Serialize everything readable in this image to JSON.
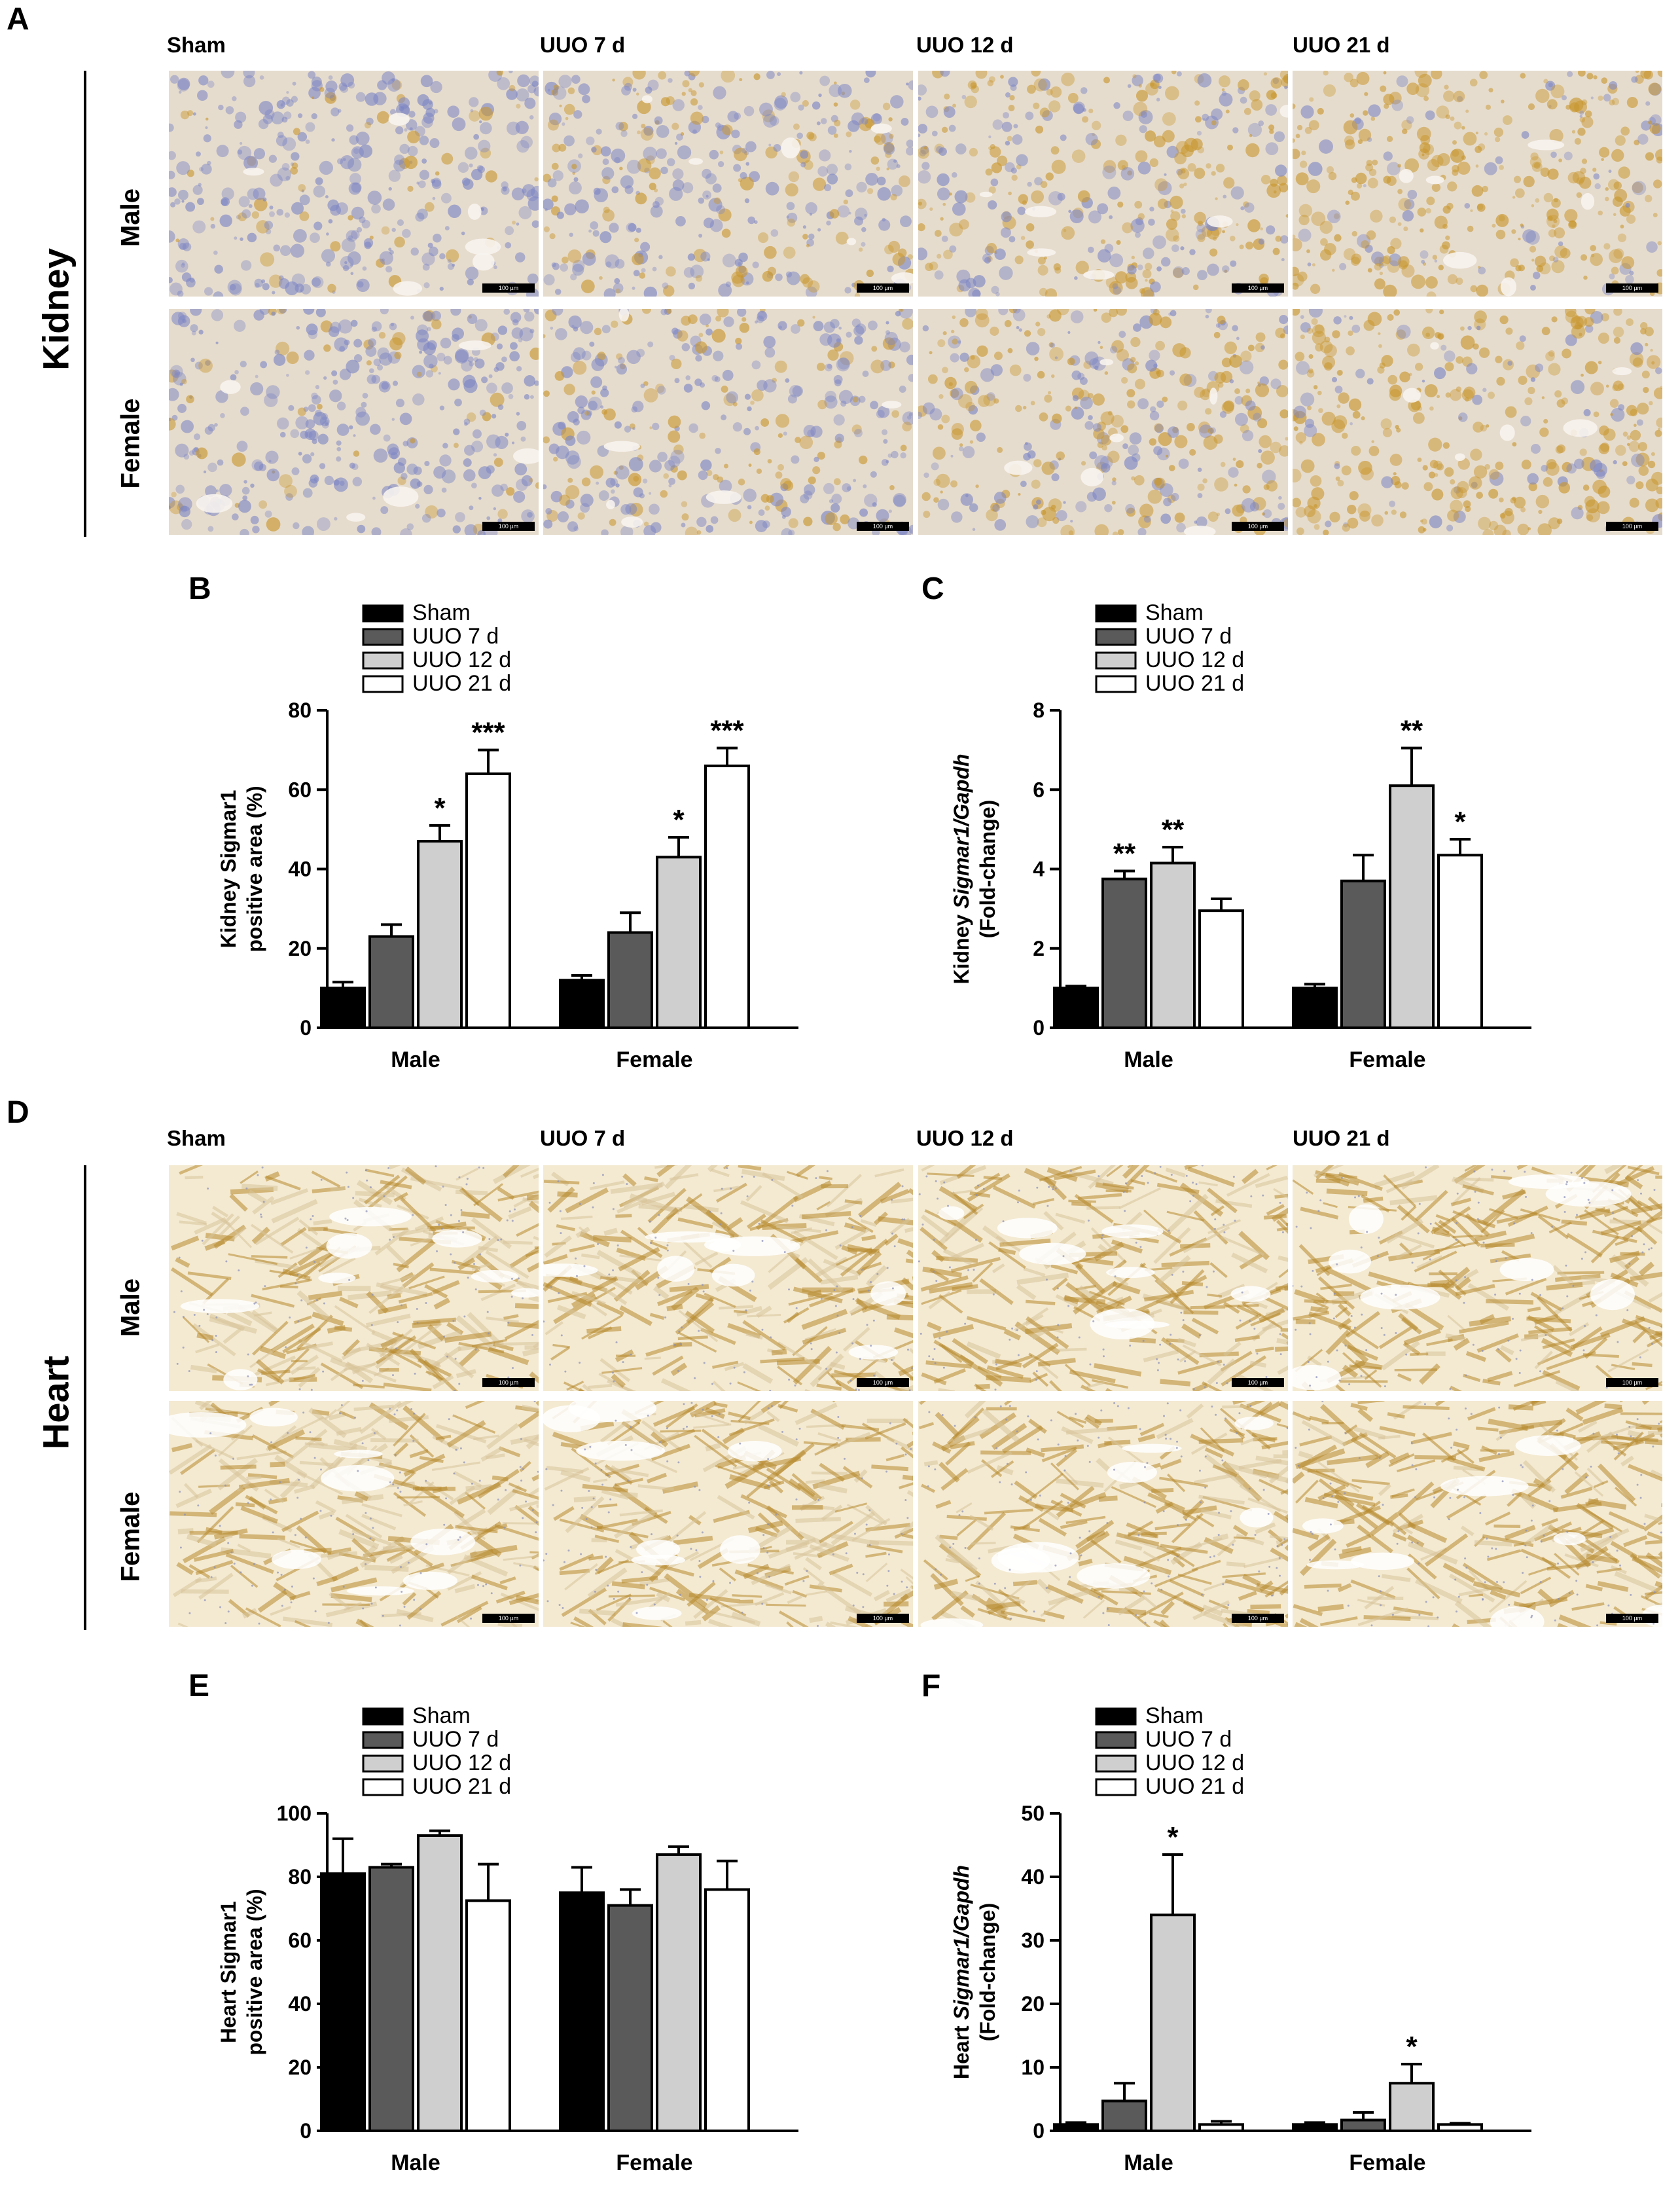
{
  "panel_letters": {
    "a": "A",
    "b": "B",
    "c": "C",
    "d": "D",
    "e": "E",
    "f": "F"
  },
  "kidney_section": {
    "side_label": "Kidney",
    "columns": [
      "Sham",
      "UUO 7 d",
      "UUO 12 d",
      "UUO 21 d"
    ],
    "rows": [
      "Male",
      "Female"
    ],
    "scale_bar": "100 µm",
    "stain_colors": {
      "tissue_base": "#e6dccd",
      "hematoxylin": "#7d86c4",
      "dab": "#c8962e"
    }
  },
  "heart_section": {
    "side_label": "Heart",
    "columns": [
      "Sham",
      "UUO 7 d",
      "UUO 12 d",
      "UUO 21 d"
    ],
    "rows": [
      "Male",
      "Female"
    ],
    "scale_bar": "100 µm",
    "stain_colors": {
      "tissue_base": "#ead9b4",
      "hematoxylin": "#8a8fb8",
      "dab": "#b88a2e"
    }
  },
  "legend": [
    "Sham",
    "UUO 7 d",
    "UUO 12 d",
    "UUO 21 d"
  ],
  "bar_fills": [
    "#000000",
    "#5a5a5a",
    "#cfcfcf",
    "#ffffff"
  ],
  "chart_data": [
    {
      "id": "B",
      "type": "bar",
      "categories": [
        "Male",
        "Female"
      ],
      "ylabel": [
        "Kidney Sigmar1",
        "positive area (%)"
      ],
      "ylim": [
        0,
        80
      ],
      "yticks": [
        0,
        20,
        40,
        60,
        80
      ],
      "series": [
        {
          "name": "Sham",
          "values": [
            10,
            12
          ],
          "errors": [
            1.5,
            1.2
          ],
          "sig": [
            "",
            ""
          ]
        },
        {
          "name": "UUO 7 d",
          "values": [
            23,
            24
          ],
          "errors": [
            3,
            5
          ],
          "sig": [
            "",
            ""
          ]
        },
        {
          "name": "UUO 12 d",
          "values": [
            47,
            43
          ],
          "errors": [
            4,
            5
          ],
          "sig": [
            "*",
            "*"
          ]
        },
        {
          "name": "UUO 21 d",
          "values": [
            64,
            66
          ],
          "errors": [
            6,
            4.5
          ],
          "sig": [
            "***",
            "***"
          ]
        }
      ]
    },
    {
      "id": "C",
      "type": "bar",
      "categories": [
        "Male",
        "Female"
      ],
      "ylabel_parts": [
        [
          "Kidney ",
          "Sigmar1/Gapdh"
        ],
        [
          "(Fold-change)",
          ""
        ]
      ],
      "ylim": [
        0,
        8
      ],
      "yticks": [
        0,
        2,
        4,
        6,
        8
      ],
      "series": [
        {
          "name": "Sham",
          "values": [
            1.0,
            1.0
          ],
          "errors": [
            0.05,
            0.1
          ],
          "sig": [
            "",
            ""
          ]
        },
        {
          "name": "UUO 7 d",
          "values": [
            3.75,
            3.7
          ],
          "errors": [
            0.2,
            0.65
          ],
          "sig": [
            "**",
            ""
          ]
        },
        {
          "name": "UUO 12 d",
          "values": [
            4.15,
            6.1
          ],
          "errors": [
            0.4,
            0.95
          ],
          "sig": [
            "**",
            "**"
          ]
        },
        {
          "name": "UUO 21 d",
          "values": [
            2.95,
            4.35
          ],
          "errors": [
            0.3,
            0.4
          ],
          "sig": [
            "",
            "*"
          ]
        }
      ]
    },
    {
      "id": "E",
      "type": "bar",
      "categories": [
        "Male",
        "Female"
      ],
      "ylabel": [
        "Heart Sigmar1",
        "positive area (%)"
      ],
      "ylim": [
        0,
        100
      ],
      "yticks": [
        0,
        20,
        40,
        60,
        80,
        100
      ],
      "series": [
        {
          "name": "Sham",
          "values": [
            81,
            75
          ],
          "errors": [
            11,
            8
          ],
          "sig": [
            "",
            ""
          ]
        },
        {
          "name": "UUO 7 d",
          "values": [
            83,
            71
          ],
          "errors": [
            1,
            5
          ],
          "sig": [
            "",
            ""
          ]
        },
        {
          "name": "UUO 12 d",
          "values": [
            93,
            87
          ],
          "errors": [
            1.5,
            2.5
          ],
          "sig": [
            "",
            ""
          ]
        },
        {
          "name": "UUO 21 d",
          "values": [
            72.5,
            76
          ],
          "errors": [
            11.5,
            9
          ],
          "sig": [
            "",
            ""
          ]
        }
      ]
    },
    {
      "id": "F",
      "type": "bar",
      "categories": [
        "Male",
        "Female"
      ],
      "ylabel_parts": [
        [
          "Heart ",
          "Sigmar1/Gapdh"
        ],
        [
          "(Fold-change)",
          ""
        ]
      ],
      "ylim": [
        0,
        50
      ],
      "yticks": [
        0,
        10,
        20,
        30,
        40,
        50
      ],
      "series": [
        {
          "name": "Sham",
          "values": [
            1.0,
            1.0
          ],
          "errors": [
            0.3,
            0.3
          ],
          "sig": [
            "",
            ""
          ]
        },
        {
          "name": "UUO 7 d",
          "values": [
            4.7,
            1.7
          ],
          "errors": [
            2.8,
            1.2
          ],
          "sig": [
            "",
            ""
          ]
        },
        {
          "name": "UUO 12 d",
          "values": [
            34,
            7.5
          ],
          "errors": [
            9.5,
            3
          ],
          "sig": [
            "*",
            "*"
          ]
        },
        {
          "name": "UUO 21 d",
          "values": [
            1.0,
            1.0
          ],
          "errors": [
            0.5,
            0.2
          ],
          "sig": [
            "",
            ""
          ]
        }
      ]
    }
  ]
}
